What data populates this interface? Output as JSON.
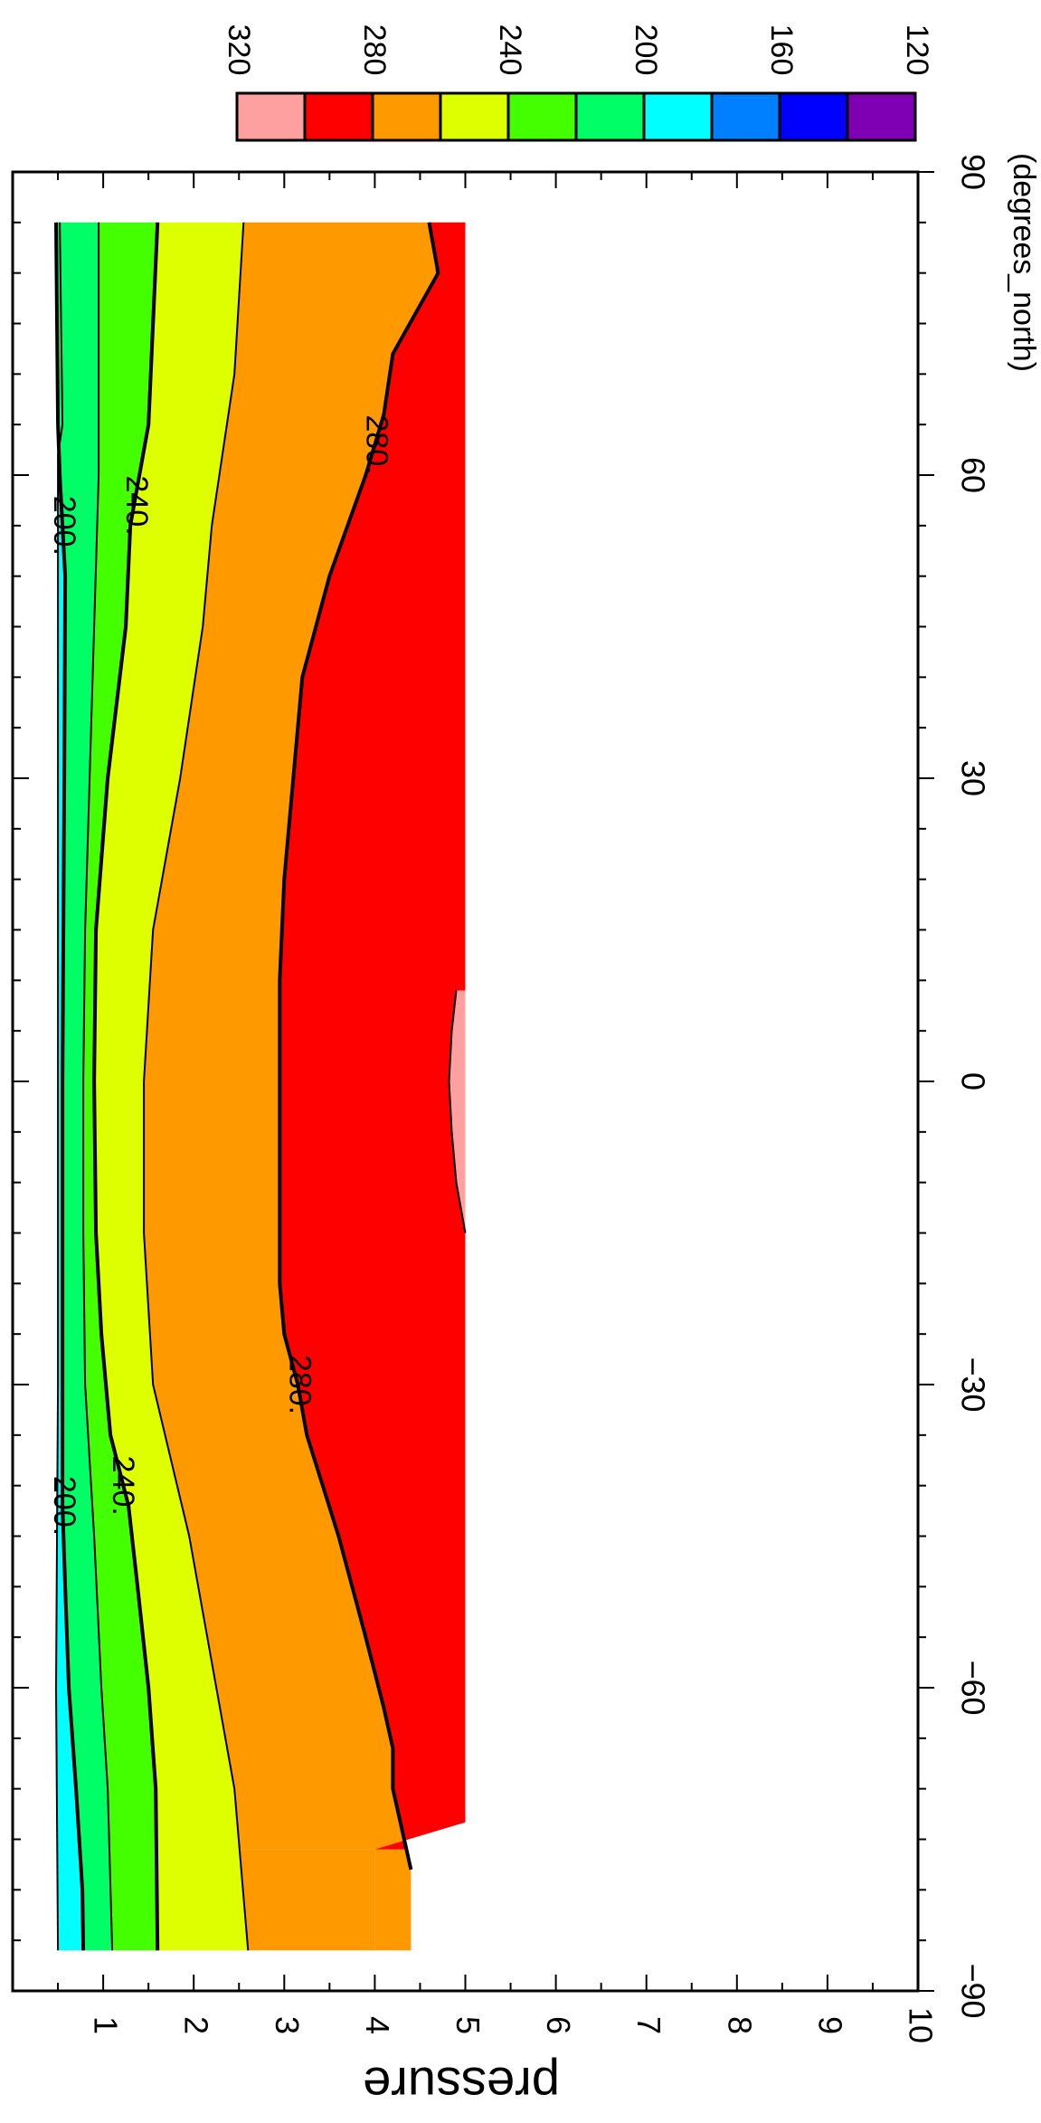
{
  "chart_data": {
    "type": "contour",
    "title": "",
    "x_axis": {
      "label": "(degrees_north)",
      "range": [
        -90,
        90
      ],
      "ticks": [
        -90,
        -60,
        -30,
        0,
        30,
        60,
        90
      ],
      "tick_labels": [
        "−90",
        "−60",
        "−30",
        "0",
        "30",
        "60",
        "90"
      ]
    },
    "y_axis": {
      "label": "pressure",
      "range": [
        0,
        10
      ],
      "ticks": [
        1,
        2,
        3,
        4,
        5,
        6,
        7,
        8,
        9,
        10
      ],
      "tick_labels": [
        "1",
        "2",
        "3",
        "4",
        "5",
        "6",
        "7",
        "8",
        "9",
        "10"
      ]
    },
    "colorbar": {
      "levels": [
        120,
        140,
        160,
        180,
        200,
        220,
        240,
        260,
        280,
        300,
        320
      ],
      "tick_values": [
        120,
        160,
        200,
        240,
        280,
        320
      ],
      "tick_labels": [
        "120",
        "160",
        "200",
        "240",
        "280",
        "320"
      ],
      "colors": [
        "#7f00b4",
        "#0000ff",
        "#0080ff",
        "#00ffff",
        "#00ff66",
        "#44ff00",
        "#ddff00",
        "#ff9900",
        "#ff0000",
        "#ffa0a0"
      ]
    },
    "data_extent": {
      "lat": [
        -86,
        85
      ],
      "pressure_top": 0.5,
      "pressure_bottom_by_lat": [
        {
          "lat_from": -86,
          "lat_to": -76,
          "pressure": 4
        },
        {
          "lat_from": -76,
          "lat_to": 85,
          "pressure": 5
        }
      ]
    },
    "series": [
      {
        "level": 180,
        "points": [
          [
            -86,
            0.5
          ],
          [
            -60,
            0.48
          ],
          [
            -30,
            0.5
          ],
          [
            0,
            0.5
          ],
          [
            30,
            0.5
          ],
          [
            62,
            0.5
          ],
          [
            65,
            0.55
          ],
          [
            85,
            0.52
          ]
        ]
      },
      {
        "level": 200,
        "points": [
          [
            -86,
            0.78
          ],
          [
            -80,
            0.77
          ],
          [
            -70,
            0.7
          ],
          [
            -60,
            0.62
          ],
          [
            -50,
            0.58
          ],
          [
            -42,
            0.55
          ],
          [
            -30,
            0.55
          ],
          [
            0,
            0.55
          ],
          [
            30,
            0.57
          ],
          [
            50,
            0.58
          ],
          [
            60,
            0.52
          ],
          [
            65,
            0.5
          ],
          [
            85,
            0.48
          ]
        ]
      },
      {
        "level": 220,
        "points": [
          [
            -86,
            1.1
          ],
          [
            -70,
            1.05
          ],
          [
            -60,
            0.98
          ],
          [
            -45,
            0.9
          ],
          [
            -30,
            0.8
          ],
          [
            -15,
            0.78
          ],
          [
            0,
            0.78
          ],
          [
            15,
            0.8
          ],
          [
            30,
            0.85
          ],
          [
            45,
            0.9
          ],
          [
            60,
            0.95
          ],
          [
            75,
            0.95
          ],
          [
            85,
            0.95
          ]
        ]
      },
      {
        "level": 240,
        "points": [
          [
            -86,
            1.6
          ],
          [
            -70,
            1.58
          ],
          [
            -60,
            1.5
          ],
          [
            -50,
            1.38
          ],
          [
            -42,
            1.28
          ],
          [
            -35,
            1.08
          ],
          [
            -25,
            0.98
          ],
          [
            -15,
            0.92
          ],
          [
            0,
            0.9
          ],
          [
            15,
            0.92
          ],
          [
            30,
            1.05
          ],
          [
            45,
            1.25
          ],
          [
            55,
            1.3
          ],
          [
            65,
            1.5
          ],
          [
            85,
            1.6
          ]
        ]
      },
      {
        "level": 260,
        "points": [
          [
            -86,
            2.6
          ],
          [
            -70,
            2.45
          ],
          [
            -55,
            2.15
          ],
          [
            -45,
            1.95
          ],
          [
            -30,
            1.55
          ],
          [
            -15,
            1.45
          ],
          [
            0,
            1.45
          ],
          [
            15,
            1.55
          ],
          [
            30,
            1.85
          ],
          [
            45,
            2.1
          ],
          [
            55,
            2.2
          ],
          [
            70,
            2.45
          ],
          [
            85,
            2.55
          ]
        ]
      },
      {
        "level": 280,
        "points": [
          [
            -78,
            4.4
          ],
          [
            -70,
            4.2
          ],
          [
            -66,
            4.2
          ],
          [
            -62,
            4.1
          ],
          [
            -55,
            3.9
          ],
          [
            -45,
            3.6
          ],
          [
            -35,
            3.25
          ],
          [
            -30,
            3.15
          ],
          [
            -25,
            3.0
          ],
          [
            -20,
            2.95
          ],
          [
            0,
            2.95
          ],
          [
            10,
            2.95
          ],
          [
            20,
            3.0
          ],
          [
            30,
            3.1
          ],
          [
            40,
            3.2
          ],
          [
            50,
            3.5
          ],
          [
            60,
            3.9
          ],
          [
            66,
            4.1
          ],
          [
            72,
            4.2
          ],
          [
            80,
            4.7
          ],
          [
            85,
            4.6
          ]
        ]
      },
      {
        "level": 300,
        "points": [
          [
            -15,
            5.0
          ],
          [
            -10,
            4.9
          ],
          [
            -5,
            4.85
          ],
          [
            0,
            4.82
          ],
          [
            5,
            4.85
          ],
          [
            9,
            4.9
          ]
        ]
      }
    ],
    "contour_labels": [
      {
        "text": "200.",
        "lat": -42,
        "pressure": 0.55
      },
      {
        "text": "240.",
        "lat": -40,
        "pressure": 1.2
      },
      {
        "text": "280.",
        "lat": -30,
        "pressure": 3.15
      },
      {
        "text": "200.",
        "lat": 55,
        "pressure": 0.55
      },
      {
        "text": "240.",
        "lat": 57,
        "pressure": 1.35
      },
      {
        "text": "280.",
        "lat": 63,
        "pressure": 4.0
      }
    ],
    "grid": false,
    "colorbar_placement": "top-right"
  }
}
